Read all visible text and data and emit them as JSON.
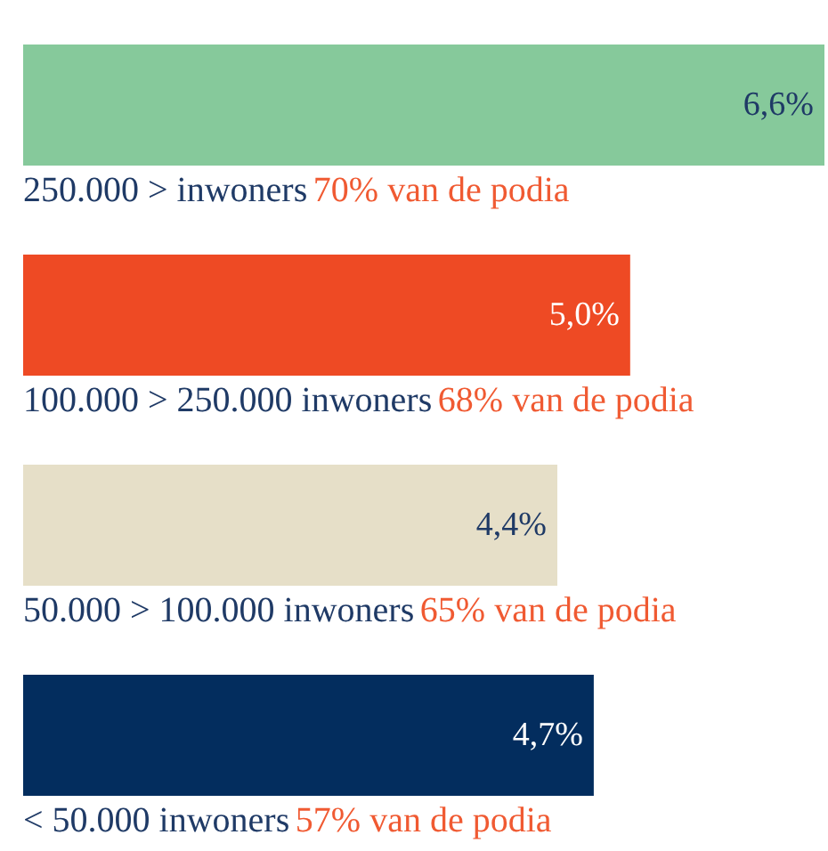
{
  "chart_data": {
    "type": "bar",
    "orientation": "horizontal",
    "categories": [
      "250.000 > inwoners",
      "100.000 > 250.000 inwoners",
      "50.000 > 100.000 inwoners",
      "< 50.000 inwoners"
    ],
    "values": [
      6.6,
      5.0,
      4.4,
      4.7
    ],
    "colors": [
      "#86c99b",
      "#ee4a24",
      "#e6dfc8",
      "#032d5e"
    ],
    "value_labels": [
      "6,6%",
      "5,0%",
      "4,4%",
      "4,7%"
    ],
    "annotations": [
      "70% van de podia",
      "68% van de podia",
      "65% van de podia",
      "57% van de podia"
    ]
  }
}
